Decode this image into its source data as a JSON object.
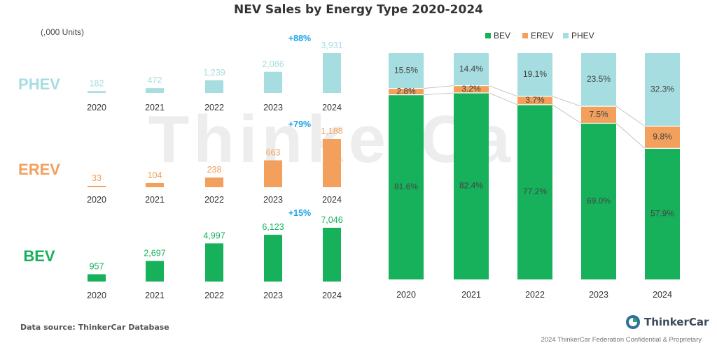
{
  "title": "NEV Sales by Energy Type 2020-2024",
  "units_note": "(,000 Units)",
  "watermark": "ThinkerCar",
  "source": "Data source: ThinkerCar Database",
  "logo_text": "ThinkerCar",
  "footer": "2024 ThinkerCar Federation Confidential & Proprietary",
  "colors": {
    "BEV": "#17b15c",
    "EREV": "#f2a05c",
    "PHEV": "#a6dde0",
    "growth": "#1aa3e6"
  },
  "chart_data": [
    {
      "type": "bar",
      "categories": [
        "2020",
        "2021",
        "2022",
        "2023",
        "2024"
      ],
      "series": [
        {
          "name": "PHEV",
          "values": [
            182,
            472,
            1239,
            2086,
            3931
          ],
          "labels": [
            "182",
            "472",
            "1,239",
            "2,086",
            "3,931"
          ],
          "growth_label": "+88%"
        },
        {
          "name": "EREV",
          "values": [
            33,
            104,
            238,
            663,
            1188
          ],
          "labels": [
            "33",
            "104",
            "238",
            "663",
            "1,188"
          ],
          "growth_label": "+79%"
        },
        {
          "name": "BEV",
          "values": [
            957,
            2697,
            4997,
            6123,
            7046
          ],
          "labels": [
            "957",
            "2,697",
            "4,997",
            "6,123",
            "7,046"
          ],
          "growth_label": "+15%"
        }
      ]
    },
    {
      "type": "bar",
      "stacked": true,
      "percent": true,
      "categories": [
        "2020",
        "2021",
        "2022",
        "2023",
        "2024"
      ],
      "legend_position": "top-right",
      "series": [
        {
          "name": "BEV",
          "values": [
            81.6,
            82.4,
            77.2,
            69.0,
            57.9
          ],
          "labels": [
            "81.6%",
            "82.4%",
            "77.2%",
            "69.0%",
            "57.9%"
          ]
        },
        {
          "name": "EREV",
          "values": [
            2.8,
            3.2,
            3.7,
            7.5,
            9.8
          ],
          "labels": [
            "2.8%",
            "3.2%",
            "3.7%",
            "7.5%",
            "9.8%"
          ]
        },
        {
          "name": "PHEV",
          "values": [
            15.5,
            14.4,
            19.1,
            23.5,
            32.3
          ],
          "labels": [
            "15.5%",
            "14.4%",
            "19.1%",
            "23.5%",
            "32.3%"
          ]
        }
      ]
    }
  ]
}
